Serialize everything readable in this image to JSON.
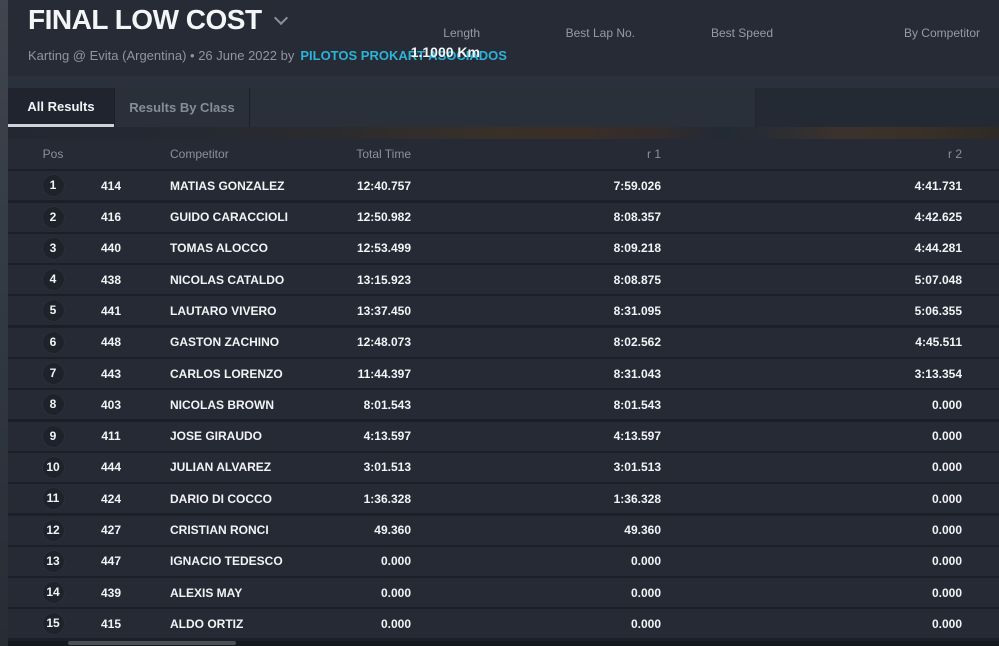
{
  "header": {
    "title": "FINAL LOW COST",
    "subtitle_prefix": "Karting @ Evita (Argentina) • 26 June 2022 by",
    "organizer": "PILOTOS PROKART ASOCIADOS",
    "stats": [
      {
        "label": "Length",
        "value": "1.1000 Km"
      },
      {
        "label": "Best Lap No.",
        "value": ""
      },
      {
        "label": "Best Speed",
        "value": ""
      },
      {
        "label": "By Competitor",
        "value": ""
      }
    ]
  },
  "tabs": [
    {
      "label": "All Results",
      "active": true
    },
    {
      "label": "Results By Class",
      "active": false
    }
  ],
  "table": {
    "columns": {
      "pos": "Pos",
      "kart": "",
      "competitor": "Competitor",
      "total": "Total Time",
      "r1": "r 1",
      "r2": "r 2"
    },
    "rows": [
      {
        "pos": "1",
        "kart": "414",
        "name": "MATIAS GONZALEZ",
        "total": "12:40.757",
        "r1": "7:59.026",
        "r2": "4:41.731"
      },
      {
        "pos": "2",
        "kart": "416",
        "name": "GUIDO CARACCIOLI",
        "total": "12:50.982",
        "r1": "8:08.357",
        "r2": "4:42.625"
      },
      {
        "pos": "3",
        "kart": "440",
        "name": "TOMAS ALOCCO",
        "total": "12:53.499",
        "r1": "8:09.218",
        "r2": "4:44.281"
      },
      {
        "pos": "4",
        "kart": "438",
        "name": "NICOLAS CATALDO",
        "total": "13:15.923",
        "r1": "8:08.875",
        "r2": "5:07.048"
      },
      {
        "pos": "5",
        "kart": "441",
        "name": "LAUTARO VIVERO",
        "total": "13:37.450",
        "r1": "8:31.095",
        "r2": "5:06.355"
      },
      {
        "pos": "6",
        "kart": "448",
        "name": "GASTON ZACHINO",
        "total": "12:48.073",
        "r1": "8:02.562",
        "r2": "4:45.511"
      },
      {
        "pos": "7",
        "kart": "443",
        "name": "CARLOS LORENZO",
        "total": "11:44.397",
        "r1": "8:31.043",
        "r2": "3:13.354"
      },
      {
        "pos": "8",
        "kart": "403",
        "name": "NICOLAS BROWN",
        "total": "8:01.543",
        "r1": "8:01.543",
        "r2": "0.000"
      },
      {
        "pos": "9",
        "kart": "411",
        "name": "JOSE GIRAUDO",
        "total": "4:13.597",
        "r1": "4:13.597",
        "r2": "0.000"
      },
      {
        "pos": "10",
        "kart": "444",
        "name": "JULIAN ALVAREZ",
        "total": "3:01.513",
        "r1": "3:01.513",
        "r2": "0.000"
      },
      {
        "pos": "11",
        "kart": "424",
        "name": "DARIO DI COCCO",
        "total": "1:36.328",
        "r1": "1:36.328",
        "r2": "0.000"
      },
      {
        "pos": "12",
        "kart": "427",
        "name": "CRISTIAN RONCI",
        "total": "49.360",
        "r1": "49.360",
        "r2": "0.000"
      },
      {
        "pos": "13",
        "kart": "447",
        "name": "IGNACIO TEDESCO",
        "total": "0.000",
        "r1": "0.000",
        "r2": "0.000"
      },
      {
        "pos": "14",
        "kart": "439",
        "name": "ALEXIS MAY",
        "total": "0.000",
        "r1": "0.000",
        "r2": "0.000"
      },
      {
        "pos": "15",
        "kart": "415",
        "name": "ALDO ORTIZ",
        "total": "0.000",
        "r1": "0.000",
        "r2": "0.000"
      }
    ]
  },
  "colors": {
    "topbar_bg": "#262b35",
    "row_bg": "#252a34",
    "table_gap": "#1a1f28",
    "accent_link": "#2db2d8",
    "text_white": "#f2f3f5",
    "text_gray": "#8b919b",
    "tab_active_bg": "#1f242e",
    "tab_underline": "#cfd4da"
  }
}
